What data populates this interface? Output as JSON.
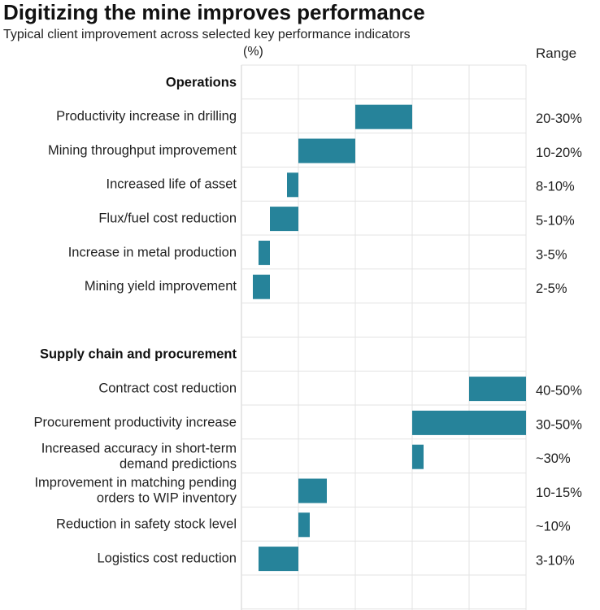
{
  "chart_data": {
    "type": "bar",
    "title": "Digitizing the mine improves performance",
    "subtitle": "Typical client improvement across selected key performance indicators",
    "unit_label": "(%)",
    "range_header": "Range",
    "xlim": [
      0,
      50
    ],
    "grid": true,
    "bar_color": "#26839a",
    "sections": [
      {
        "name": "Operations",
        "items": [
          {
            "label": [
              "Productivity increase in drilling"
            ],
            "low": 20,
            "high": 30,
            "range": "20-30%"
          },
          {
            "label": [
              "Mining throughput improvement"
            ],
            "low": 10,
            "high": 20,
            "range": "10-20%"
          },
          {
            "label": [
              "Increased life of asset"
            ],
            "low": 8,
            "high": 10,
            "range": "8-10%"
          },
          {
            "label": [
              "Flux/fuel cost reduction"
            ],
            "low": 5,
            "high": 10,
            "range": "5-10%"
          },
          {
            "label": [
              "Increase in metal production"
            ],
            "low": 3,
            "high": 5,
            "range": "3-5%"
          },
          {
            "label": [
              "Mining yield improvement"
            ],
            "low": 2,
            "high": 5,
            "range": "2-5%"
          }
        ]
      },
      {
        "name": "Supply chain and procurement",
        "items": [
          {
            "label": [
              "Contract cost reduction"
            ],
            "low": 40,
            "high": 50,
            "range": "40-50%"
          },
          {
            "label": [
              "Procurement productivity increase"
            ],
            "low": 30,
            "high": 50,
            "range": "30-50%"
          },
          {
            "label": [
              "Increased accuracy in short-term",
              "demand predictions"
            ],
            "low": 30,
            "high": 32,
            "range": "~30%"
          },
          {
            "label": [
              "Improvement in matching pending",
              "orders to WIP inventory"
            ],
            "low": 10,
            "high": 15,
            "range": "10-15%"
          },
          {
            "label": [
              "Reduction in safety stock level"
            ],
            "low": 10,
            "high": 12,
            "range": "~10%"
          },
          {
            "label": [
              "Logistics cost reduction"
            ],
            "low": 3,
            "high": 10,
            "range": "3-10%"
          }
        ]
      }
    ]
  }
}
